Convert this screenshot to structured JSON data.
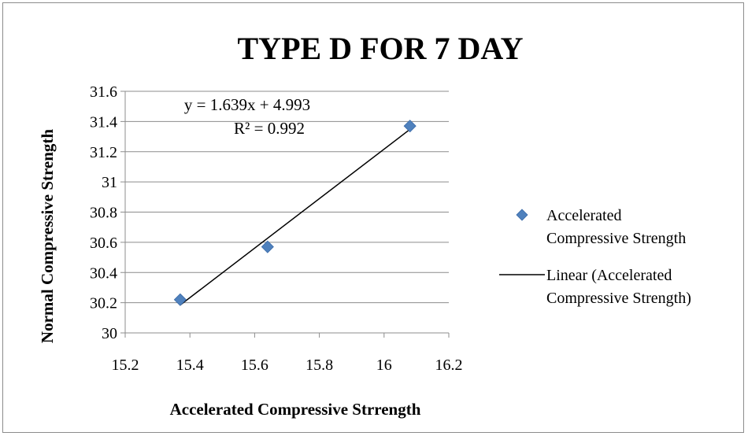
{
  "chart_data": {
    "type": "scatter",
    "title": "TYPE D FOR 7 DAY",
    "xlabel": "Accelerated Compressive Strrength",
    "ylabel": "Normal Compressive Strength",
    "xlim": [
      15.2,
      16.2
    ],
    "ylim": [
      30,
      31.6
    ],
    "x_ticks": [
      "15.2",
      "15.4",
      "15.6",
      "15.8",
      "16",
      "16.2"
    ],
    "y_ticks": [
      "30",
      "30.2",
      "30.4",
      "30.6",
      "30.8",
      "31",
      "31.2",
      "31.4",
      "31.6"
    ],
    "grid": "horizontal",
    "legend_position": "right",
    "series": [
      {
        "name": "Accelerated Compressive Strength",
        "marker": "diamond",
        "color": "#4f81bd",
        "points": [
          {
            "x": 15.37,
            "y": 30.22
          },
          {
            "x": 15.64,
            "y": 30.57
          },
          {
            "x": 16.08,
            "y": 31.37
          }
        ]
      }
    ],
    "trendline": {
      "name": "Linear (Accelerated Compressive Strength)",
      "type": "linear",
      "slope": 1.639,
      "intercept": 4.993,
      "x_range": [
        15.37,
        16.08
      ],
      "color": "#000000",
      "equation_label": "y = 1.639x + 4.993",
      "r2_label": "R² = 0.992"
    },
    "legend": [
      {
        "label_lines": [
          "Accelerated",
          "Compressive Strength"
        ],
        "symbol": "diamond"
      },
      {
        "label_lines": [
          "Linear (Accelerated",
          "Compressive Strength)"
        ],
        "symbol": "line"
      }
    ]
  }
}
